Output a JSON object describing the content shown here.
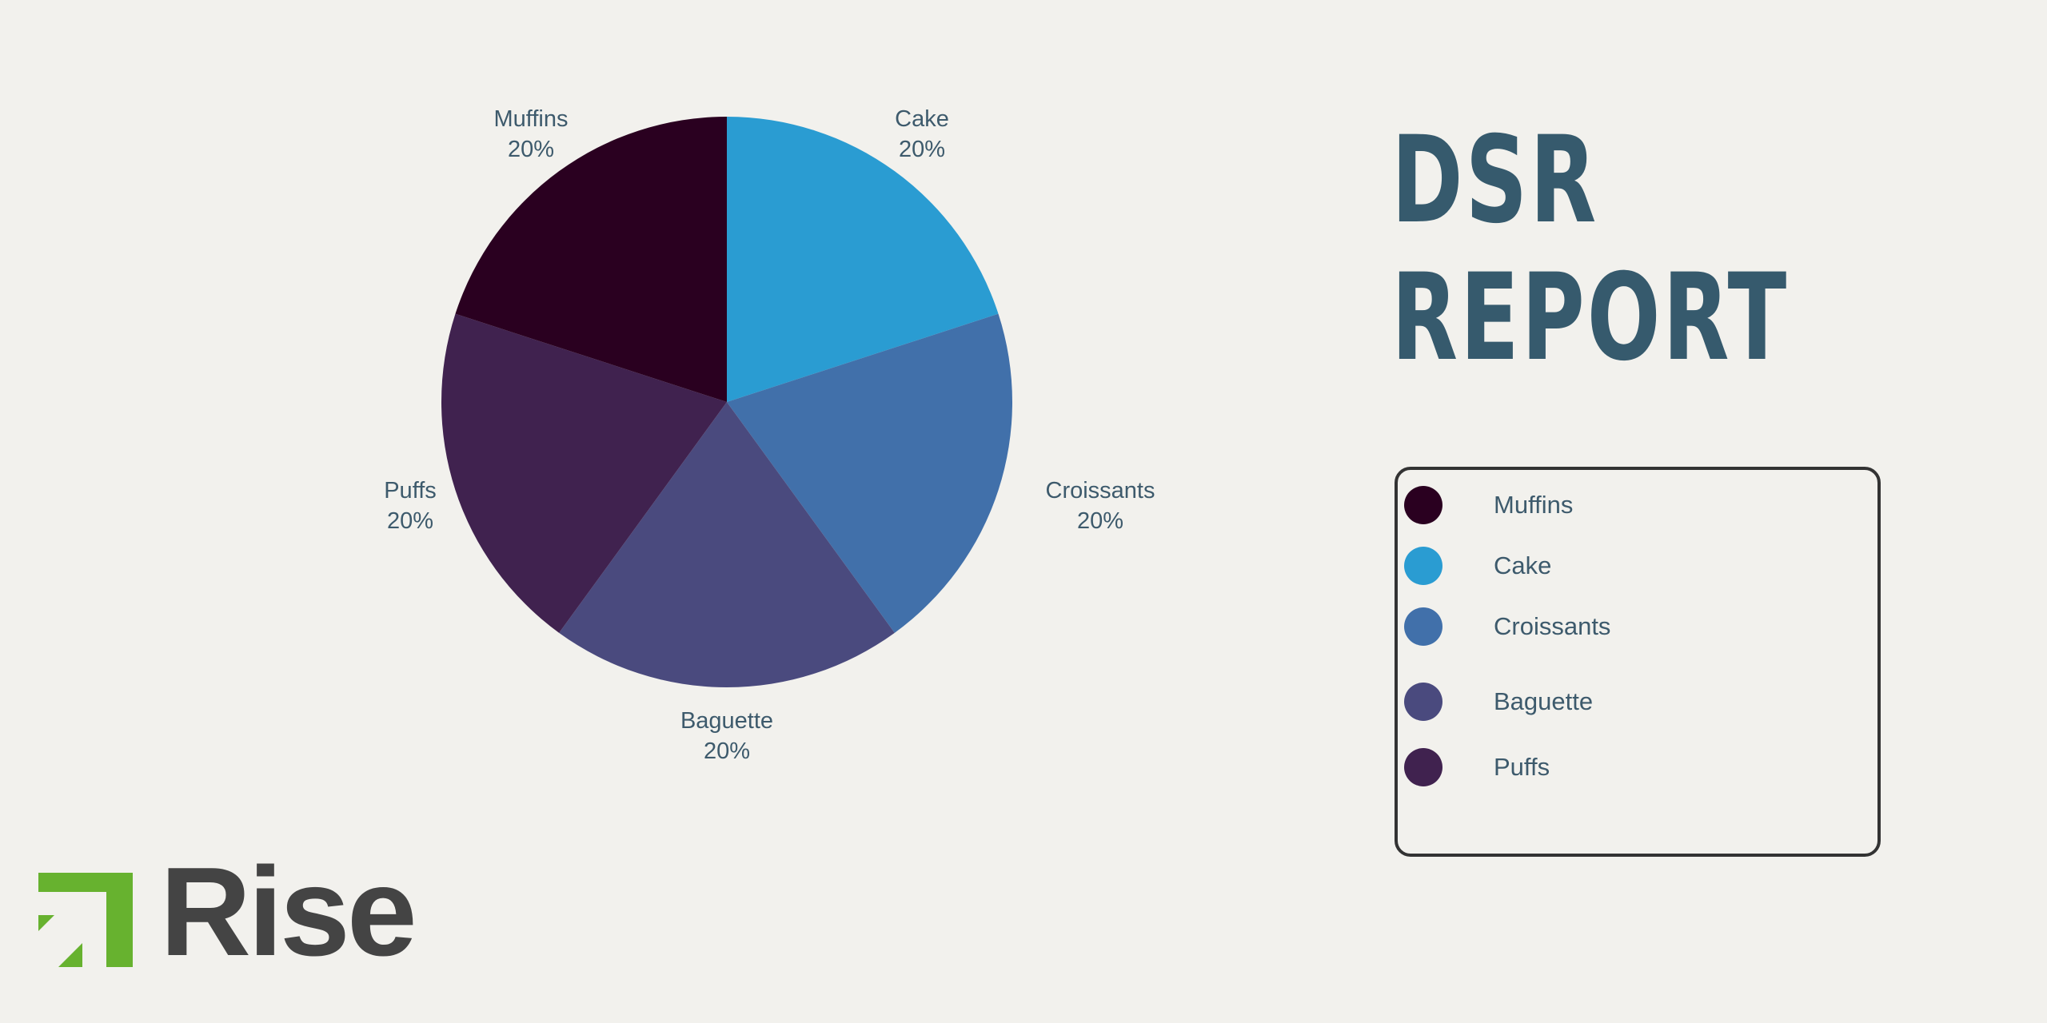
{
  "title": {
    "line1": "DSR",
    "line2": "REPORT",
    "color": "#365a6d"
  },
  "chart_data": {
    "type": "pie",
    "title": "DSR REPORT",
    "categories": [
      "Cake",
      "Croissants",
      "Baguette",
      "Puffs",
      "Muffins"
    ],
    "values": [
      20,
      20,
      20,
      20,
      20
    ],
    "labels": [
      "20%",
      "20%",
      "20%",
      "20%",
      "20%"
    ],
    "colors": [
      "#2a9cd2",
      "#4170aa",
      "#4a4a7e",
      "#40224f",
      "#2a0020"
    ],
    "start_angle": "12 o'clock",
    "direction": "clockwise",
    "legend_position": "right",
    "legend_order": [
      "Muffins",
      "Cake",
      "Croissants",
      "Baguette",
      "Puffs"
    ]
  },
  "slices": [
    {
      "name": "Cake",
      "pct": "20%",
      "color": "#2a9cd2"
    },
    {
      "name": "Croissants",
      "pct": "20%",
      "color": "#4170aa"
    },
    {
      "name": "Baguette",
      "pct": "20%",
      "color": "#4a4a7e"
    },
    {
      "name": "Puffs",
      "pct": "20%",
      "color": "#40224f"
    },
    {
      "name": "Muffins",
      "pct": "20%",
      "color": "#2a0020"
    }
  ],
  "legend": {
    "items": [
      {
        "label": "Muffins",
        "color": "#2a0020"
      },
      {
        "label": "Cake",
        "color": "#2a9cd2"
      },
      {
        "label": "Croissants",
        "color": "#4170aa"
      },
      {
        "label": "Baguette",
        "color": "#4a4a7e"
      },
      {
        "label": "Puffs",
        "color": "#40224f"
      }
    ]
  },
  "logo": {
    "text": "Rise",
    "mark_color": "#67b22f",
    "text_color": "#444444"
  }
}
